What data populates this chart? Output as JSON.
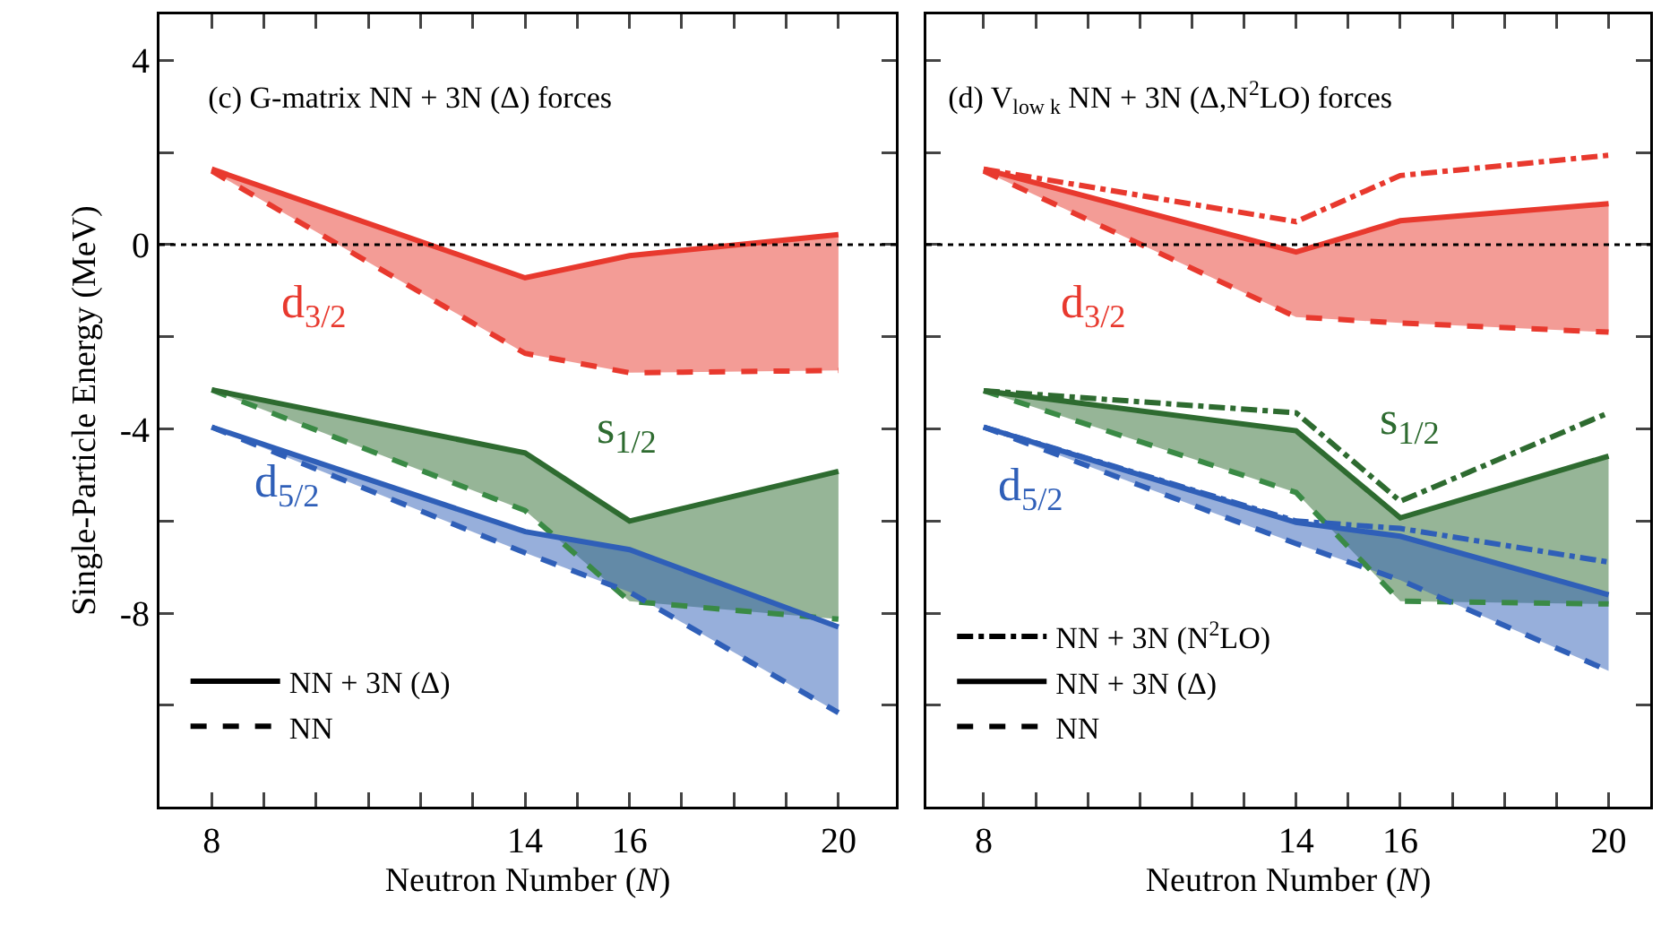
{
  "chart_data": [
    {
      "type": "line",
      "title": "(c) G-matrix NN + 3N (Δ) forces",
      "xlabel": "Neutron Number (N)",
      "ylabel": "Single-Particle Energy (MeV)",
      "x": [
        8,
        14,
        16,
        20
      ],
      "xlim": [
        7,
        21.1
      ],
      "ylim": [
        -12.2,
        5
      ],
      "xticks": [
        8,
        {
          "value": 9,
          "label": null
        },
        {
          "value": 10,
          "label": null
        },
        {
          "value": 11,
          "label": null
        },
        {
          "value": 12,
          "label": null
        },
        {
          "value": 13,
          "label": null
        },
        14,
        {
          "value": 15,
          "label": null
        },
        16,
        {
          "value": 17,
          "label": null
        },
        {
          "value": 18,
          "label": null
        },
        {
          "value": 19,
          "label": null
        },
        20
      ],
      "yticks": [
        4,
        {
          "value": 2,
          "label": null
        },
        0,
        {
          "value": -2,
          "label": null
        },
        -4,
        {
          "value": -6,
          "label": null
        },
        -8,
        {
          "value": -10,
          "label": null
        }
      ],
      "grid": false,
      "legend": "bottom left",
      "ref_lines": [
        {
          "axis": "y",
          "value": 0,
          "color": "#000000",
          "line_style": "dotted"
        }
      ],
      "annotations": [
        "d$_{3/2}$",
        "s$_{1/2}$",
        "d$_{5/2}$"
      ],
      "series": [
        {
          "color": "#e8392e",
          "line_style": "dashed",
          "values": [
            1.6,
            -2.36,
            -2.78,
            -2.73
          ]
        },
        {
          "color": "#e8392e",
          "line_style": "solid",
          "values": [
            1.64,
            -0.72,
            -0.24,
            0.22
          ],
          "lower": [
            1.6,
            -2.36,
            -2.78,
            -2.73
          ],
          "upper": [
            1.64,
            -0.72,
            -0.24,
            0.22
          ]
        },
        {
          "color": "#3a8a45",
          "line_style": "dashed",
          "values": [
            -3.15,
            -5.77,
            -7.74,
            -8.13
          ]
        },
        {
          "color": "#2e6b30",
          "line_style": "solid",
          "values": [
            -3.15,
            -4.52,
            -6.0,
            -4.92
          ],
          "lower": [
            -3.15,
            -5.77,
            -7.74,
            -8.13
          ],
          "upper": [
            -3.15,
            -4.52,
            -6.0,
            -4.92
          ]
        },
        {
          "color": "#2f5fb8",
          "line_style": "dashed",
          "values": [
            -3.96,
            -6.69,
            -7.54,
            -10.16
          ]
        },
        {
          "color": "#2f5fb8",
          "line_style": "solid",
          "values": [
            -3.96,
            -6.23,
            -6.62,
            -8.3
          ],
          "lower": [
            -3.96,
            -6.69,
            -7.54,
            -10.16
          ],
          "upper": [
            -3.96,
            -6.23,
            -6.62,
            -8.3
          ]
        },
        {
          "name": "NN + 3N (Δ)",
          "color": "#000000",
          "line_style": "solid",
          "values": [
            null,
            null,
            null,
            null
          ]
        },
        {
          "name": "NN",
          "color": "#000000",
          "line_style": "dashed",
          "values": [
            null,
            null,
            null,
            null
          ]
        }
      ]
    },
    {
      "type": "line",
      "title": "(d) V$_{low k}$ NN + 3N (Δ,N$^{2}$LO) forces",
      "xlabel": "Neutron Number (N)",
      "x": [
        8,
        14,
        16,
        20
      ],
      "xlim": [
        6.9,
        20.8
      ],
      "ylim": [
        -12.2,
        5
      ],
      "tick_labels": "x",
      "xticks": [
        8,
        {
          "value": 9,
          "label": null
        },
        {
          "value": 10,
          "label": null
        },
        {
          "value": 11,
          "label": null
        },
        {
          "value": 12,
          "label": null
        },
        {
          "value": 13,
          "label": null
        },
        14,
        {
          "value": 15,
          "label": null
        },
        16,
        {
          "value": 17,
          "label": null
        },
        {
          "value": 18,
          "label": null
        },
        {
          "value": 19,
          "label": null
        },
        20
      ],
      "yticks": [
        4,
        {
          "value": 2,
          "label": null
        },
        0,
        {
          "value": -2,
          "label": null
        },
        -4,
        {
          "value": -6,
          "label": null
        },
        -8,
        {
          "value": -10,
          "label": null
        }
      ],
      "grid": false,
      "legend": "bottom left",
      "ref_lines": [
        {
          "axis": "y",
          "value": 0,
          "color": "#000000",
          "line_style": "dotted"
        }
      ],
      "annotations": [
        "d$_{3/2}$",
        "s$_{1/2}$",
        "d$_{5/2}$"
      ],
      "series": [
        {
          "color": "#e8392e",
          "line_style": "dashdot",
          "values": [
            1.64,
            0.5,
            1.5,
            1.94
          ]
        },
        {
          "color": "#e8392e",
          "line_style": "dashed",
          "values": [
            1.6,
            -1.57,
            -1.7,
            -1.9
          ]
        },
        {
          "color": "#e8392e",
          "line_style": "solid",
          "values": [
            1.64,
            -0.16,
            0.52,
            0.89
          ],
          "lower": [
            1.6,
            -1.57,
            -1.7,
            -1.9
          ],
          "upper": [
            1.64,
            -0.16,
            0.52,
            0.89
          ]
        },
        {
          "color": "#2e6b30",
          "line_style": "dashdot",
          "values": [
            -3.17,
            -3.65,
            -5.57,
            -3.65
          ]
        },
        {
          "color": "#3a8a45",
          "line_style": "dashed",
          "values": [
            -3.17,
            -5.38,
            -7.74,
            -7.8
          ]
        },
        {
          "color": "#2e6b30",
          "line_style": "solid",
          "values": [
            -3.17,
            -4.04,
            -5.93,
            -4.59
          ],
          "lower": [
            -3.17,
            -5.38,
            -7.74,
            -7.8
          ],
          "upper": [
            -3.17,
            -4.04,
            -5.93,
            -4.59
          ]
        },
        {
          "color": "#2f5fb8",
          "line_style": "dashdot",
          "values": [
            -3.96,
            -6.0,
            -6.16,
            -6.89
          ]
        },
        {
          "color": "#2f5fb8",
          "line_style": "dashed",
          "values": [
            -3.96,
            -6.49,
            -7.28,
            -9.25
          ]
        },
        {
          "color": "#2f5fb8",
          "line_style": "solid",
          "values": [
            -3.96,
            -6.03,
            -6.33,
            -7.6
          ],
          "lower": [
            -3.96,
            -6.49,
            -7.28,
            -9.25
          ],
          "upper": [
            -3.96,
            -6.03,
            -6.33,
            -7.6
          ]
        },
        {
          "name": "NN + 3N (N$^{2}$LO)",
          "color": "#000000",
          "line_style": "dashdot",
          "values": [
            null,
            null,
            null,
            null
          ]
        },
        {
          "name": "NN + 3N (Δ)",
          "color": "#000000",
          "line_style": "solid",
          "values": [
            null,
            null,
            null,
            null
          ]
        },
        {
          "name": "NN",
          "color": "#000000",
          "line_style": "dashed",
          "values": [
            null,
            null,
            null,
            null
          ]
        }
      ]
    }
  ]
}
